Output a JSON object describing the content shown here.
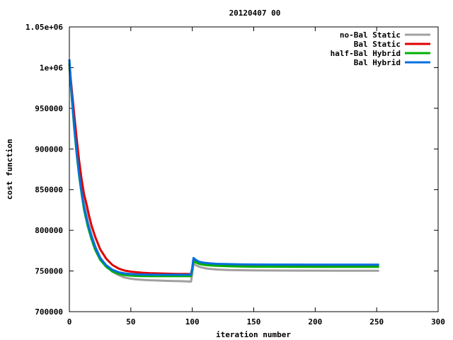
{
  "chart_data": {
    "type": "line",
    "title": "20120407 00",
    "xlabel": "iteration number",
    "ylabel": "cost function",
    "xlim": [
      0,
      300
    ],
    "ylim": [
      700000,
      1050000
    ],
    "xticks": [
      0,
      50,
      100,
      150,
      200,
      250,
      300
    ],
    "xtick_labels": [
      "0",
      "50",
      "100",
      "150",
      "200",
      "250",
      "300"
    ],
    "yticks": [
      700000,
      750000,
      800000,
      850000,
      900000,
      950000,
      1000000,
      1050000
    ],
    "ytick_labels": [
      "700000",
      "750000",
      "800000",
      "850000",
      "900000",
      "950000",
      "1e+06",
      "1.05e+06"
    ],
    "grid": false,
    "legend_position": "top-right",
    "series": [
      {
        "name": "no-Bal Static",
        "color": "#a0a0a0",
        "x": [
          0,
          2,
          4,
          6,
          8,
          10,
          12,
          15,
          18,
          21,
          25,
          30,
          35,
          40,
          45,
          50,
          55,
          60,
          65,
          70,
          75,
          80,
          85,
          90,
          95,
          99,
          100,
          101,
          103,
          106,
          110,
          115,
          120,
          130,
          140,
          150,
          175,
          200,
          225,
          252
        ],
        "y": [
          1000000,
          962000,
          928000,
          898000,
          873000,
          852000,
          834000,
          812000,
          795000,
          781000,
          767000,
          756000,
          749000,
          745000,
          742000,
          740500,
          739600,
          739100,
          738700,
          738400,
          738100,
          737900,
          737700,
          737500,
          737300,
          737000,
          747000,
          759000,
          757000,
          755000,
          753500,
          752500,
          751800,
          751200,
          750900,
          750700,
          750500,
          750400,
          750300,
          750300
        ]
      },
      {
        "name": "Bal Static",
        "color": "#e00000",
        "x": [
          0,
          2,
          4,
          6,
          8,
          10,
          12,
          14,
          16,
          18,
          21,
          25,
          30,
          35,
          40,
          45,
          50,
          55,
          60,
          65,
          70,
          75,
          80,
          85,
          90,
          95,
          99,
          100,
          101,
          103,
          106,
          110,
          115,
          120,
          130,
          140,
          150,
          175,
          200,
          225,
          252
        ],
        "y": [
          1004000,
          972000,
          942000,
          912000,
          885000,
          862000,
          844000,
          832000,
          818000,
          806000,
          792000,
          777000,
          765000,
          757500,
          753000,
          750500,
          749200,
          748400,
          747800,
          747400,
          747100,
          746900,
          746700,
          746500,
          746400,
          746300,
          746200,
          754000,
          765000,
          763000,
          761000,
          760000,
          759000,
          758500,
          758000,
          757800,
          757600,
          757500,
          757400,
          757300,
          757300
        ]
      },
      {
        "name": "half-Bal Hybrid",
        "color": "#00b000",
        "x": [
          0,
          2,
          4,
          6,
          8,
          10,
          12,
          15,
          18,
          21,
          25,
          30,
          35,
          40,
          45,
          50,
          55,
          60,
          65,
          70,
          75,
          80,
          85,
          90,
          95,
          99,
          100,
          101,
          103,
          106,
          110,
          115,
          120,
          130,
          140,
          150,
          175,
          200,
          225,
          252
        ],
        "y": [
          1006000,
          962000,
          925000,
          893000,
          866000,
          844000,
          825000,
          805000,
          789000,
          776000,
          764000,
          755000,
          749500,
          746500,
          745000,
          744300,
          743900,
          743700,
          743600,
          743600,
          743600,
          743600,
          743600,
          743600,
          743600,
          743600,
          752000,
          762000,
          760500,
          758500,
          757500,
          756800,
          756300,
          755800,
          755500,
          755300,
          755200,
          755100,
          755100,
          755100
        ]
      },
      {
        "name": "Bal Hybrid",
        "color": "#0070e0",
        "x": [
          0,
          2,
          4,
          6,
          8,
          10,
          12,
          15,
          18,
          21,
          25,
          30,
          35,
          40,
          45,
          50,
          55,
          60,
          65,
          70,
          75,
          80,
          85,
          90,
          95,
          99,
          100,
          101,
          103,
          106,
          110,
          115,
          120,
          130,
          140,
          150,
          175,
          200,
          225,
          252
        ],
        "y": [
          1010000,
          964000,
          927000,
          895000,
          868000,
          846000,
          828000,
          808000,
          792000,
          779000,
          766000,
          757000,
          751500,
          748500,
          747000,
          746200,
          745800,
          745600,
          745500,
          745400,
          745400,
          745400,
          745400,
          745400,
          745400,
          745400,
          754000,
          766000,
          763500,
          761000,
          760000,
          759300,
          758800,
          758400,
          758200,
          758000,
          757900,
          757800,
          757800,
          757800
        ]
      }
    ]
  }
}
